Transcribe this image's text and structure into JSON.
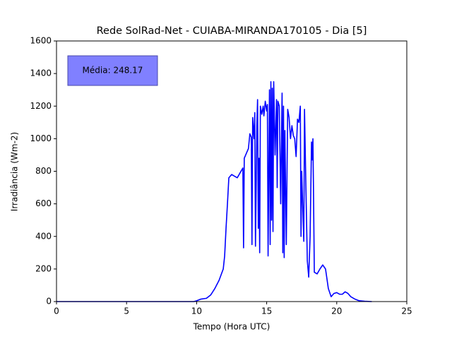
{
  "chart_data": {
    "type": "line",
    "title": "Rede SolRad-Net - CUIABA-MIRANDA170105 - Dia [5]",
    "xlabel": "Tempo (Hora UTC)",
    "ylabel": "Irradiância (Wm-2)",
    "annotation": "Média: 248.17",
    "color": "#0000ff",
    "x": [
      0,
      9.8,
      10,
      10.3,
      10.7,
      11,
      11.3,
      11.6,
      11.9,
      12.0,
      12.1,
      12.2,
      12.3,
      12.5,
      12.7,
      12.9,
      13.1,
      13.3,
      13.35,
      13.4,
      13.5,
      13.7,
      13.8,
      13.9,
      13.95,
      14.0,
      14.1,
      14.15,
      14.2,
      14.3,
      14.35,
      14.4,
      14.45,
      14.5,
      14.55,
      14.65,
      14.75,
      14.8,
      14.9,
      15.0,
      15.05,
      15.1,
      15.2,
      15.25,
      15.3,
      15.35,
      15.4,
      15.45,
      15.5,
      15.6,
      15.7,
      15.75,
      15.8,
      15.9,
      16.0,
      16.1,
      16.15,
      16.2,
      16.25,
      16.3,
      16.4,
      16.5,
      16.6,
      16.7,
      16.8,
      16.9,
      17.0,
      17.1,
      17.2,
      17.3,
      17.4,
      17.45,
      17.5,
      17.6,
      17.65,
      17.7,
      17.8,
      17.9,
      18.0,
      18.1,
      18.2,
      18.25,
      18.3,
      18.35,
      18.4,
      18.6,
      18.8,
      19.0,
      19.2,
      19.4,
      19.6,
      19.8,
      20.0,
      20.2,
      20.4,
      20.6,
      20.8,
      21.0,
      21.3,
      21.6,
      22.0,
      22.5
    ],
    "values": [
      0,
      0,
      5,
      15,
      20,
      40,
      80,
      130,
      200,
      280,
      450,
      600,
      760,
      780,
      770,
      760,
      790,
      820,
      330,
      880,
      900,
      940,
      1030,
      1010,
      350,
      1130,
      1000,
      1160,
      340,
      1080,
      1240,
      450,
      880,
      300,
      1200,
      1150,
      1200,
      1140,
      1230,
      1170,
      1210,
      280,
      1300,
      350,
      1350,
      500,
      1310,
      430,
      1350,
      900,
      1240,
      700,
      1230,
      1200,
      600,
      1280,
      300,
      1200,
      270,
      1050,
      350,
      1180,
      1130,
      1000,
      1080,
      1020,
      1000,
      890,
      1120,
      1100,
      1200,
      400,
      800,
      500,
      370,
      1180,
      700,
      250,
      150,
      400,
      980,
      870,
      1000,
      600,
      180,
      170,
      200,
      225,
      200,
      80,
      30,
      50,
      55,
      45,
      45,
      60,
      50,
      30,
      15,
      5,
      2,
      0
    ],
    "xlim": [
      0,
      25
    ],
    "xticks": [
      0,
      5,
      10,
      15,
      20,
      25
    ],
    "ylim": [
      0,
      1600
    ],
    "yticks": [
      0,
      200,
      400,
      600,
      800,
      1000,
      1200,
      1400,
      1600
    ]
  }
}
